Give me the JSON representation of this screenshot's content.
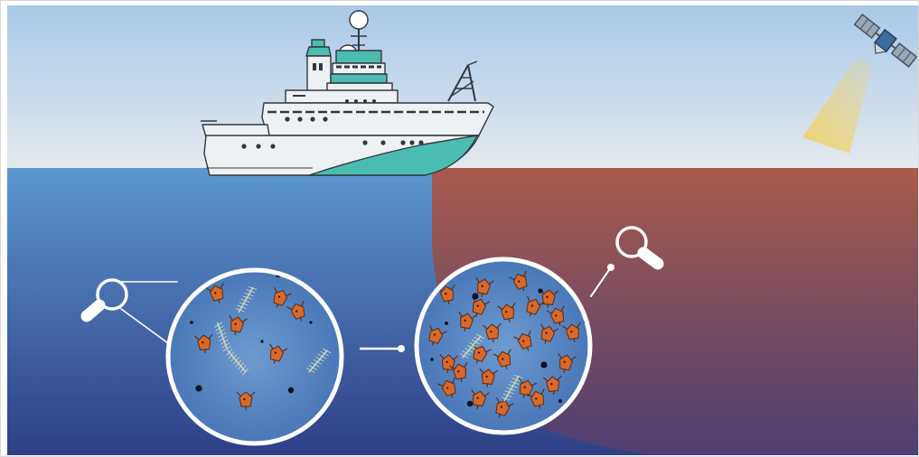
{
  "scene": {
    "colors": {
      "sky_top": "#a9c8e8",
      "sky_bottom": "#e4e9ee",
      "ocean_top": "#5b96cf",
      "ocean_bottom": "#2e3f86",
      "bloom_top": "#a85a4c",
      "bloom_bottom": "#4e3f72",
      "ship_hull_accent": "#4bbcb0",
      "copepod_orange": "#d8692a",
      "diatom": "#cfd6b8",
      "satellite_beam": "#f0d060"
    },
    "icons": [
      "research-ship-icon",
      "satellite-icon",
      "magnifier-icon",
      "copepod-icon",
      "diatom-icon",
      "particle-icon"
    ],
    "panels": [
      {
        "name": "clear-water-sample",
        "copepods": 7,
        "diatoms": 4
      },
      {
        "name": "bloom-water-sample",
        "copepods": 26,
        "diatoms": 2
      }
    ]
  }
}
